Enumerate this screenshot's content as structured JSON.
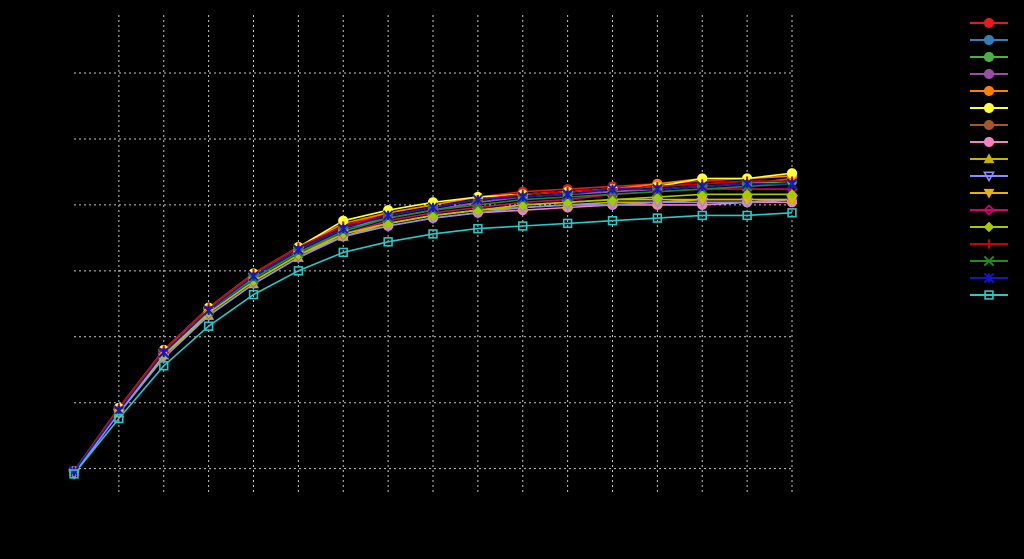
{
  "chart_data": {
    "type": "line",
    "title": "",
    "xlabel": "",
    "ylabel": "",
    "background": "#000000",
    "grid": true,
    "grid_style": "dotted",
    "grid_color": "#c8c8c8",
    "legend_position": "top-right",
    "xlim": [
      0,
      16
    ],
    "ylim": [
      -0.85,
      0.97
    ],
    "x_gridlines": [
      0,
      1,
      2,
      3,
      4,
      5,
      6,
      7,
      8,
      9,
      10,
      11,
      12,
      13,
      14,
      15,
      16
    ],
    "y_gridlines": [
      -0.75,
      -0.5,
      -0.25,
      0.0,
      0.25,
      0.5,
      0.75
    ],
    "x": [
      0,
      1,
      2,
      3,
      4,
      5,
      6,
      7,
      8,
      9,
      10,
      11,
      12,
      13,
      14,
      15,
      16
    ],
    "series": [
      {
        "color": "#e41a1c",
        "marker": "circle",
        "values": [
          -0.76,
          -0.52,
          -0.3,
          -0.14,
          -0.01,
          0.09,
          0.17,
          0.22,
          0.25,
          0.28,
          0.3,
          0.31,
          0.32,
          0.33,
          0.34,
          0.35,
          0.36
        ]
      },
      {
        "color": "#377eb8",
        "marker": "circle",
        "values": [
          -0.76,
          -0.53,
          -0.31,
          -0.15,
          -0.02,
          0.08,
          0.16,
          0.21,
          0.24,
          0.27,
          0.29,
          0.3,
          0.31,
          0.32,
          0.33,
          0.34,
          0.34
        ]
      },
      {
        "color": "#4daf4a",
        "marker": "circle",
        "values": [
          -0.76,
          -0.53,
          -0.31,
          -0.15,
          -0.02,
          0.08,
          0.16,
          0.2,
          0.23,
          0.26,
          0.28,
          0.29,
          0.3,
          0.31,
          0.32,
          0.33,
          0.34
        ]
      },
      {
        "color": "#984ea3",
        "marker": "circle",
        "values": [
          -0.76,
          -0.53,
          -0.31,
          -0.15,
          -0.03,
          0.07,
          0.15,
          0.2,
          0.23,
          0.26,
          0.28,
          0.29,
          0.3,
          0.31,
          0.32,
          0.33,
          0.35
        ]
      },
      {
        "color": "#ff7f00",
        "marker": "circle",
        "values": [
          -0.76,
          -0.52,
          -0.3,
          -0.14,
          -0.01,
          0.09,
          0.18,
          0.22,
          0.25,
          0.28,
          0.29,
          0.3,
          0.31,
          0.33,
          0.35,
          0.35,
          0.36
        ]
      },
      {
        "color": "#ffff33",
        "marker": "circle",
        "values": [
          -0.76,
          -0.52,
          -0.3,
          -0.14,
          -0.01,
          0.09,
          0.19,
          0.23,
          0.26,
          0.28,
          0.29,
          0.3,
          0.31,
          0.32,
          0.35,
          0.35,
          0.37
        ]
      },
      {
        "color": "#a65628",
        "marker": "circle",
        "values": [
          -0.76,
          -0.53,
          -0.31,
          -0.15,
          -0.03,
          0.07,
          0.14,
          0.18,
          0.21,
          0.23,
          0.24,
          0.25,
          0.25,
          0.26,
          0.26,
          0.26,
          0.27
        ]
      },
      {
        "color": "#f781bf",
        "marker": "circle",
        "values": [
          -0.76,
          -0.53,
          -0.31,
          -0.16,
          -0.04,
          0.06,
          0.13,
          0.17,
          0.2,
          0.22,
          0.23,
          0.24,
          0.25,
          0.25,
          0.25,
          0.26,
          0.26
        ]
      },
      {
        "color": "#c8b400",
        "marker": "triangle-up",
        "values": [
          -0.76,
          -0.54,
          -0.32,
          -0.17,
          -0.05,
          0.05,
          0.13,
          0.18,
          0.21,
          0.23,
          0.24,
          0.25,
          0.26,
          0.26,
          0.27,
          0.27,
          0.27
        ]
      },
      {
        "color": "#8c8cff",
        "marker": "triangle-down-open",
        "values": [
          -0.77,
          -0.54,
          -0.33,
          -0.17,
          -0.05,
          0.05,
          0.13,
          0.17,
          0.2,
          0.22,
          0.24,
          0.25,
          0.25,
          0.26,
          0.26,
          0.26,
          0.27
        ]
      },
      {
        "color": "#e6b400",
        "marker": "triangle-down",
        "values": [
          -0.76,
          -0.53,
          -0.32,
          -0.16,
          -0.04,
          0.06,
          0.14,
          0.18,
          0.21,
          0.23,
          0.25,
          0.26,
          0.27,
          0.27,
          0.27,
          0.27,
          0.27
        ]
      },
      {
        "color": "#d6006e",
        "marker": "diamond-open",
        "values": [
          -0.76,
          -0.53,
          -0.31,
          -0.16,
          -0.04,
          0.06,
          0.14,
          0.19,
          0.22,
          0.24,
          0.26,
          0.27,
          0.29,
          0.3,
          0.31,
          0.31,
          0.31
        ]
      },
      {
        "color": "#a8c800",
        "marker": "diamond",
        "values": [
          -0.76,
          -0.53,
          -0.32,
          -0.16,
          -0.04,
          0.06,
          0.14,
          0.18,
          0.21,
          0.23,
          0.25,
          0.26,
          0.27,
          0.28,
          0.29,
          0.29,
          0.29
        ]
      },
      {
        "color": "#cc0000",
        "marker": "plus",
        "values": [
          -0.76,
          -0.52,
          -0.3,
          -0.14,
          -0.01,
          0.09,
          0.17,
          0.21,
          0.24,
          0.27,
          0.29,
          0.3,
          0.31,
          0.32,
          0.33,
          0.34,
          0.34
        ]
      },
      {
        "color": "#1e8c1e",
        "marker": "x",
        "values": [
          -0.76,
          -0.53,
          -0.31,
          -0.15,
          -0.03,
          0.07,
          0.15,
          0.2,
          0.23,
          0.25,
          0.27,
          0.28,
          0.29,
          0.3,
          0.31,
          0.32,
          0.33
        ]
      },
      {
        "color": "#1414c8",
        "marker": "star",
        "values": [
          -0.76,
          -0.53,
          -0.31,
          -0.15,
          -0.02,
          0.08,
          0.16,
          0.21,
          0.24,
          0.27,
          0.28,
          0.29,
          0.31,
          0.31,
          0.32,
          0.33,
          0.33
        ]
      },
      {
        "color": "#29c8c8",
        "marker": "square-open",
        "values": [
          -0.77,
          -0.56,
          -0.36,
          -0.21,
          -0.09,
          0.0,
          0.07,
          0.11,
          0.14,
          0.16,
          0.17,
          0.18,
          0.19,
          0.2,
          0.21,
          0.21,
          0.22
        ]
      }
    ]
  }
}
